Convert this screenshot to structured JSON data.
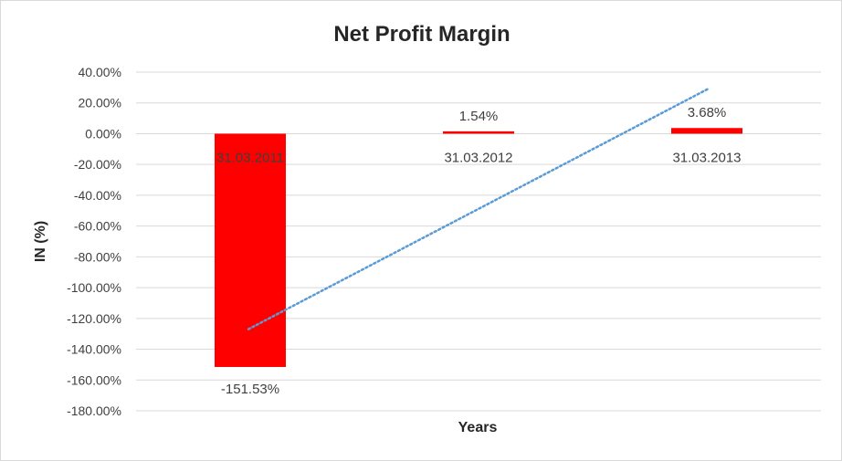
{
  "chart_data": {
    "type": "bar",
    "title": "Net Profit Margin",
    "xlabel": "Years",
    "ylabel": "IN (%)",
    "categories": [
      "31.03.2011",
      "31.03.2012",
      "31.03.2013"
    ],
    "values": [
      -151.53,
      1.54,
      3.68
    ],
    "data_labels": [
      "-151.53%",
      "1.54%",
      "3.68%"
    ],
    "ylim": [
      -180,
      40
    ],
    "ytick_step": 20,
    "ytick_labels": [
      "40.00%",
      "20.00%",
      "0.00%",
      "-20.00%",
      "-40.00%",
      "-60.00%",
      "-80.00%",
      "-100.00%",
      "-120.00%",
      "-140.00%",
      "-160.00%",
      "-180.00%"
    ],
    "trendline": {
      "type": "linear",
      "style": "dotted",
      "color": "#5b9bd5",
      "start_value": -127,
      "end_value": 29
    },
    "bar_color": "#ff0000",
    "grid": true,
    "legend": "none"
  }
}
